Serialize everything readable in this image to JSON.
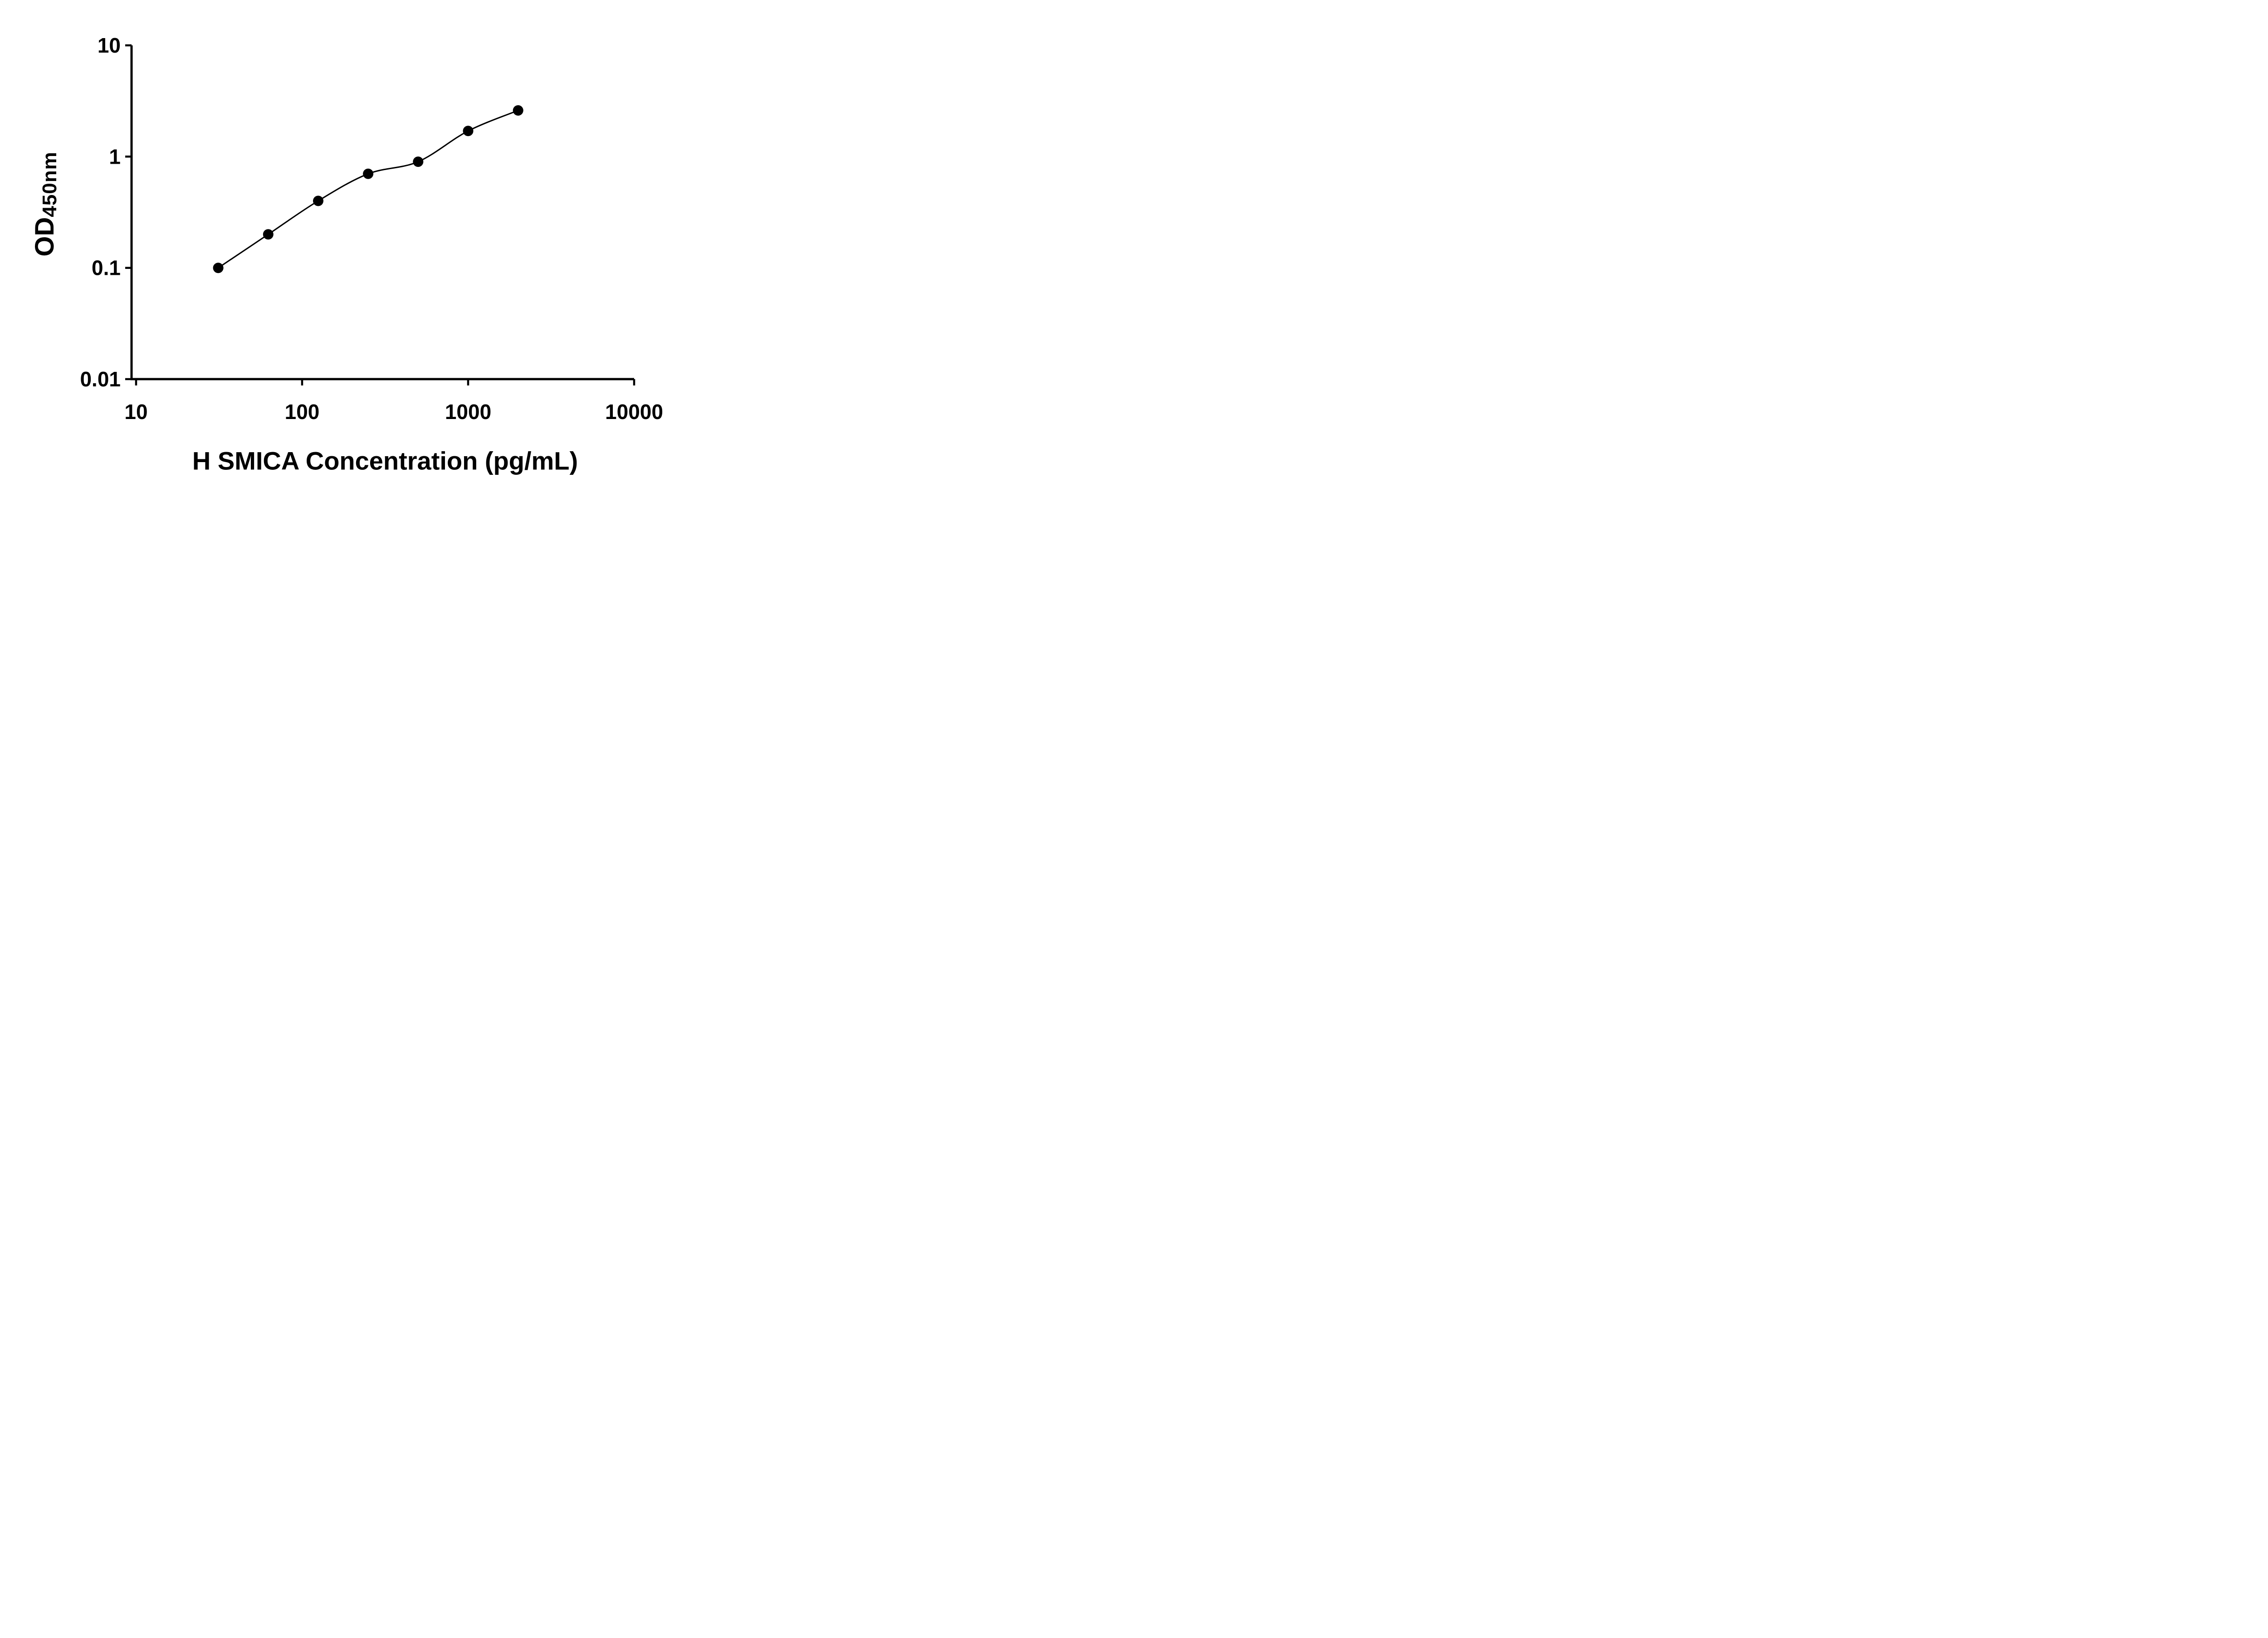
{
  "page": {
    "background": "#ffffff"
  },
  "chart_data": {
    "type": "scatter",
    "x": [
      31.25,
      62.5,
      125,
      250,
      500,
      1000,
      2000
    ],
    "y": [
      0.1,
      0.2,
      0.4,
      0.7,
      0.9,
      1.7,
      2.6
    ],
    "title": "",
    "xlabel": "H SMICA Concentration (pg/mL)",
    "ylabel": "OD",
    "ylabel_subscript": "450nm",
    "xscale": "log",
    "yscale": "log",
    "xlim": [
      10,
      10000
    ],
    "ylim": [
      0.01,
      10
    ],
    "x_ticks": [
      10,
      100,
      1000,
      10000
    ],
    "x_tick_labels": [
      "10",
      "100",
      "1000",
      "10000"
    ],
    "y_ticks": [
      10,
      1,
      0.1,
      0.01
    ],
    "y_tick_labels": [
      "10",
      "1",
      "0.1",
      "0.01"
    ],
    "grid": false,
    "legend": false,
    "line_style": "smooth-fit-curve",
    "marker_style": "filled-circle",
    "marker_color": "#000000",
    "line_color": "#000000",
    "axis_color": "#000000",
    "text_color": "#000000"
  }
}
